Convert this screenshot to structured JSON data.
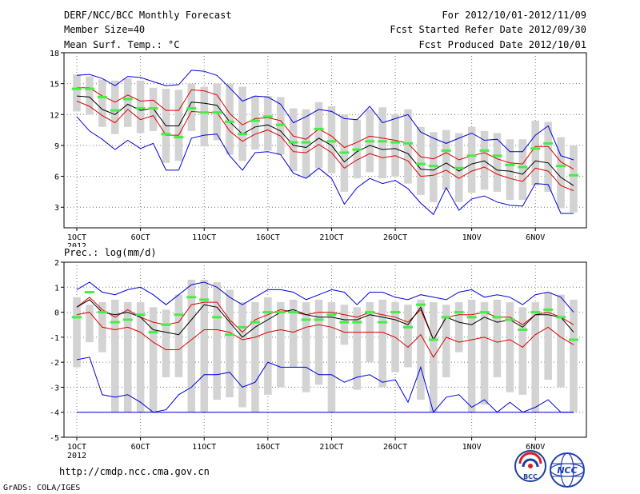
{
  "header": {
    "title": "DERF/NCC/BCC Monthly Forecast",
    "member": "Member Size=40",
    "variable": "Mean Surf. Temp.: °C",
    "period": "For 2012/10/01-2012/11/09",
    "started": "Fcst Started Refer Date 2012/09/30",
    "produced": "Fcst Produced Date 2012/10/01"
  },
  "footer": {
    "url": "http://cmdp.ncc.cma.gov.cn",
    "credit": "GrADS: COLA/IGES",
    "logo_bcc": "BCC",
    "logo_ncc": "NCC"
  },
  "colors": {
    "envelope": "#0000dd",
    "spread": "#dd0000",
    "mean": "#000000",
    "observed": "#44ee44",
    "box": "#d3d3d3",
    "grid": "#777777"
  },
  "chart_data": [
    {
      "type": "box-line",
      "title": "Mean Surf. Temp.: °C",
      "ylim": [
        1,
        18
      ],
      "yticks": [
        3,
        6,
        9,
        12,
        15,
        18
      ],
      "xticks": [
        "1OCT",
        "6OCT",
        "11OCT",
        "16OCT",
        "21OCT",
        "26OCT",
        "1NOV",
        "6NOV"
      ],
      "xtick_days": [
        1,
        6,
        11,
        16,
        21,
        26,
        32,
        37
      ],
      "year_label": "2012",
      "days": [
        1,
        2,
        3,
        4,
        5,
        6,
        7,
        8,
        9,
        10,
        11,
        12,
        13,
        14,
        15,
        16,
        17,
        18,
        19,
        20,
        21,
        22,
        23,
        24,
        25,
        26,
        27,
        28,
        29,
        30,
        31,
        32,
        33,
        34,
        35,
        36,
        37,
        38,
        39,
        40
      ],
      "series": [
        {
          "name": "max",
          "values": [
            15.8,
            15.9,
            15.5,
            14.8,
            15.7,
            15.6,
            15.2,
            14.8,
            14.9,
            16.3,
            16.2,
            15.8,
            14.6,
            13.3,
            13.8,
            13.7,
            13.0,
            11.2,
            11.8,
            12.5,
            12.3,
            11.6,
            11.5,
            12.8,
            11.2,
            11.6,
            12.0,
            10.3,
            9.7,
            9.2,
            9.7,
            10.2,
            9.5,
            9.6,
            8.4,
            8.4,
            10.0,
            10.9,
            8.0,
            7.6
          ]
        },
        {
          "name": "upper",
          "values": [
            14.6,
            14.6,
            13.8,
            13.2,
            13.9,
            13.3,
            13.4,
            12.4,
            12.4,
            14.4,
            14.3,
            13.9,
            12.1,
            11.0,
            11.6,
            11.7,
            11.4,
            9.9,
            9.6,
            10.6,
            9.9,
            8.8,
            9.3,
            9.9,
            9.7,
            9.5,
            9.2,
            7.9,
            7.7,
            8.3,
            7.6,
            8.0,
            8.3,
            7.7,
            7.3,
            7.2,
            8.9,
            8.9,
            7.4,
            6.7
          ]
        },
        {
          "name": "mean",
          "values": [
            13.8,
            13.7,
            12.5,
            12.0,
            13.0,
            12.4,
            12.6,
            10.9,
            10.9,
            13.2,
            13.1,
            12.9,
            11.3,
            10.1,
            10.8,
            11.0,
            10.4,
            9.0,
            8.8,
            9.7,
            9.0,
            7.4,
            8.4,
            9.0,
            8.6,
            8.7,
            8.2,
            6.7,
            6.6,
            7.3,
            6.5,
            7.2,
            7.5,
            6.6,
            6.5,
            6.2,
            7.5,
            7.3,
            5.9,
            5.1
          ]
        },
        {
          "name": "lower",
          "values": [
            13.3,
            12.8,
            11.9,
            11.2,
            12.5,
            11.5,
            11.9,
            10.0,
            10.0,
            12.3,
            12.2,
            12.2,
            10.4,
            9.4,
            10.1,
            10.5,
            9.9,
            8.4,
            8.3,
            9.1,
            8.3,
            6.8,
            7.6,
            8.2,
            7.8,
            8.0,
            7.5,
            6.0,
            6.1,
            6.6,
            5.8,
            6.5,
            6.9,
            6.2,
            5.8,
            5.5,
            6.8,
            6.5,
            5.1,
            4.6
          ]
        },
        {
          "name": "min",
          "values": [
            11.8,
            10.4,
            9.6,
            8.6,
            9.5,
            8.7,
            9.2,
            6.6,
            6.6,
            9.7,
            10.0,
            10.1,
            8.0,
            6.6,
            8.3,
            8.4,
            8.1,
            6.3,
            5.8,
            6.8,
            5.8,
            3.3,
            4.9,
            5.8,
            5.3,
            5.6,
            4.8,
            3.4,
            2.3,
            4.9,
            2.7,
            3.8,
            4.1,
            3.5,
            3.2,
            3.1,
            5.3,
            5.2,
            2.4,
            2.4
          ]
        },
        {
          "name": "observed",
          "values": [
            14.5,
            14.5,
            13.7,
            12.4,
            13.5,
            12.6,
            12.6,
            10.1,
            9.8,
            12.6,
            12.2,
            12.2,
            11.3,
            10.1,
            11.4,
            11.8,
            11.0,
            9.3,
            9.3,
            10.6,
            9.4,
            8.3,
            8.6,
            9.4,
            9.4,
            9.3,
            9.2,
            7.2,
            7.0,
            8.5,
            6.8,
            8.0,
            8.5,
            8.0,
            7.1,
            6.9,
            8.7,
            9.2,
            7.0,
            6.1
          ]
        },
        {
          "name": "box_high",
          "values": [
            15.9,
            15.7,
            15.4,
            15.3,
            15.5,
            15.3,
            14.6,
            14.5,
            14.4,
            15.0,
            14.7,
            15.0,
            15.0,
            14.7,
            13.8,
            13.8,
            13.7,
            12.6,
            12.5,
            13.2,
            12.8,
            12.0,
            11.5,
            12.5,
            12.7,
            12.0,
            12.5,
            10.8,
            10.3,
            10.5,
            10.2,
            10.8,
            10.4,
            10.2,
            9.6,
            9.6,
            11.4,
            11.3,
            9.8,
            9.0
          ]
        },
        {
          "name": "box_low",
          "values": [
            12.3,
            12.0,
            10.8,
            10.1,
            10.8,
            10.2,
            10.4,
            7.3,
            7.5,
            10.4,
            8.9,
            9.5,
            8.1,
            7.5,
            8.6,
            8.5,
            8.1,
            6.5,
            5.9,
            6.8,
            6.3,
            4.5,
            5.8,
            6.4,
            5.8,
            6.0,
            5.3,
            4.2,
            3.5,
            4.7,
            3.5,
            4.4,
            4.7,
            4.5,
            3.7,
            3.7,
            5.1,
            4.5,
            2.9,
            2.5
          ]
        }
      ]
    },
    {
      "type": "box-line",
      "title": "Prec.: log(mm/d)",
      "ylim": [
        -5,
        2
      ],
      "yticks": [
        -5,
        -4,
        -3,
        -2,
        -1,
        0,
        1,
        2
      ],
      "xticks": [
        "1OCT",
        "6OCT",
        "11OCT",
        "16OCT",
        "21OCT",
        "26OCT",
        "1NOV",
        "6NOV"
      ],
      "xtick_days": [
        1,
        6,
        11,
        16,
        21,
        26,
        32,
        37
      ],
      "year_label": "2012",
      "days": [
        1,
        2,
        3,
        4,
        5,
        6,
        7,
        8,
        9,
        10,
        11,
        12,
        13,
        14,
        15,
        16,
        17,
        18,
        19,
        20,
        21,
        22,
        23,
        24,
        25,
        26,
        27,
        28,
        29,
        30,
        31,
        32,
        33,
        34,
        35,
        36,
        37,
        38,
        39,
        40
      ],
      "series": [
        {
          "name": "max",
          "values": [
            0.9,
            1.2,
            0.8,
            0.7,
            0.9,
            1.0,
            0.7,
            0.3,
            0.7,
            1.1,
            1.2,
            1.0,
            0.6,
            0.3,
            0.6,
            0.9,
            0.9,
            0.8,
            0.5,
            0.7,
            0.9,
            0.8,
            0.3,
            0.8,
            0.8,
            0.6,
            0.5,
            0.7,
            0.6,
            0.5,
            0.8,
            0.9,
            0.6,
            0.7,
            0.6,
            0.3,
            0.7,
            0.8,
            0.6,
            0.0
          ]
        },
        {
          "name": "upper",
          "values": [
            0.2,
            0.6,
            0.1,
            -0.2,
            0.1,
            -0.2,
            -0.4,
            -0.5,
            -0.4,
            0.3,
            0.4,
            0.4,
            -0.3,
            -0.8,
            -0.3,
            -0.1,
            0.1,
            0.0,
            -0.1,
            0.0,
            0.0,
            -0.1,
            -0.2,
            0.0,
            -0.1,
            -0.2,
            -0.4,
            0.1,
            -1.1,
            -0.2,
            -0.1,
            -0.1,
            0.0,
            -0.2,
            -0.2,
            -0.5,
            -0.1,
            0.0,
            -0.2,
            -0.5
          ]
        },
        {
          "name": "mean",
          "values": [
            0.2,
            0.5,
            0.0,
            -0.1,
            0.0,
            -0.2,
            -0.7,
            -0.8,
            -0.9,
            -0.3,
            0.3,
            0.2,
            -0.4,
            -1.0,
            -0.6,
            -0.3,
            0.0,
            0.1,
            -0.1,
            -0.2,
            -0.2,
            -0.3,
            -0.3,
            -0.1,
            -0.2,
            -0.3,
            -0.5,
            0.2,
            -1.1,
            -0.2,
            -0.4,
            -0.5,
            -0.2,
            -0.4,
            -0.3,
            -0.6,
            -0.1,
            -0.1,
            -0.2,
            -0.8
          ]
        },
        {
          "name": "lower",
          "values": [
            -0.1,
            0.0,
            -0.6,
            -0.7,
            -0.6,
            -0.8,
            -1.2,
            -1.5,
            -1.5,
            -1.1,
            -0.7,
            -0.7,
            -0.8,
            -1.1,
            -1.0,
            -0.8,
            -0.7,
            -0.8,
            -0.6,
            -0.5,
            -0.6,
            -0.8,
            -0.8,
            -0.8,
            -0.8,
            -1.0,
            -1.4,
            -0.9,
            -1.8,
            -1.0,
            -1.2,
            -1.1,
            -1.0,
            -1.2,
            -1.1,
            -1.4,
            -0.9,
            -0.6,
            -1.0,
            -1.3
          ]
        },
        {
          "name": "min",
          "values": [
            -1.9,
            -1.8,
            -3.3,
            -3.4,
            -3.3,
            -3.6,
            -4.0,
            -3.9,
            -3.3,
            -3.0,
            -2.5,
            -2.5,
            -2.4,
            -3.0,
            -2.8,
            -2.0,
            -2.2,
            -2.2,
            -2.2,
            -2.5,
            -2.5,
            -2.8,
            -2.6,
            -2.5,
            -2.8,
            -2.7,
            -3.6,
            -2.2,
            -4.0,
            -3.4,
            -3.3,
            -3.8,
            -3.5,
            -4.0,
            -3.6,
            -4.0,
            -3.8,
            -3.5,
            -4.0,
            -4.0
          ]
        },
        {
          "name": "floor",
          "values": [
            -4.0,
            -4.0,
            -4.0,
            -4.0,
            -4.0,
            -4.0,
            -4.0,
            -4.0,
            -4.0,
            -4.0,
            -4.0,
            -4.0,
            -4.0,
            -4.0,
            -4.0,
            -4.0,
            -4.0,
            -4.0,
            -4.0,
            -4.0,
            -4.0,
            -4.0,
            -4.0,
            -4.0,
            -4.0,
            -4.0,
            -4.0,
            -4.0,
            -4.0,
            -4.0,
            -4.0,
            -4.0,
            -4.0,
            -4.0,
            -4.0,
            -4.0,
            -4.0,
            -4.0,
            -4.0,
            -4.0
          ]
        },
        {
          "name": "observed",
          "values": [
            -0.2,
            0.8,
            0.0,
            -0.4,
            -0.3,
            -0.1,
            -0.8,
            -0.5,
            -0.1,
            0.6,
            0.5,
            -0.2,
            -0.9,
            -0.6,
            -0.4,
            0.0,
            0.0,
            0.0,
            -0.3,
            -0.3,
            -0.1,
            -0.4,
            -0.4,
            0.0,
            -0.4,
            0.0,
            -0.6,
            0.3,
            -1.1,
            -0.2,
            0.0,
            -0.2,
            0.0,
            -0.2,
            -0.3,
            -0.7,
            0.0,
            0.1,
            -0.2,
            -1.1
          ]
        },
        {
          "name": "box_high",
          "values": [
            0.6,
            0.3,
            0.4,
            0.5,
            0.4,
            0.4,
            0.2,
            0.1,
            0.7,
            1.3,
            1.3,
            1.2,
            0.9,
            0.4,
            0.4,
            0.6,
            0.4,
            0.5,
            0.4,
            0.5,
            0.4,
            0.3,
            0.2,
            0.4,
            0.5,
            0.4,
            0.3,
            0.5,
            0.4,
            0.3,
            0.4,
            0.5,
            0.4,
            0.5,
            0.4,
            0.2,
            0.4,
            0.8,
            0.7,
            0.5
          ]
        },
        {
          "name": "box_low",
          "values": [
            -2.2,
            -1.2,
            -1.6,
            -4.0,
            -4.0,
            -4.0,
            -4.0,
            -2.6,
            -2.6,
            -4.0,
            -4.0,
            -3.5,
            -3.4,
            -3.8,
            -4.0,
            -3.3,
            -3.0,
            -2.2,
            -3.2,
            -2.9,
            -4.0,
            -1.3,
            -3.1,
            -2.0,
            -3.0,
            -2.4,
            -2.2,
            -3.5,
            -4.0,
            -2.6,
            -1.6,
            -4.0,
            -3.7,
            -2.6,
            -3.2,
            -3.3,
            -4.0,
            -2.7,
            -3.0,
            -4.0
          ]
        }
      ]
    }
  ]
}
